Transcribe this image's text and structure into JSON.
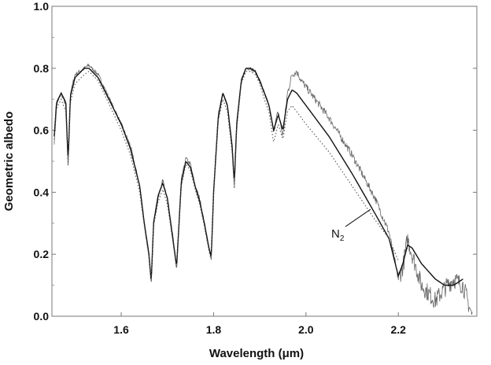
{
  "chart_data": {
    "type": "line",
    "title": "",
    "xlabel": "Wavelength (μm)",
    "ylabel": "Geometric albedo",
    "xlim": [
      1.45,
      2.37
    ],
    "ylim": [
      0.0,
      1.0
    ],
    "xticks": [
      1.6,
      1.8,
      2.0,
      2.2
    ],
    "xtick_labels": [
      "1.6",
      "1.8",
      "2.0",
      "2.2"
    ],
    "yticks": [
      0.0,
      0.2,
      0.4,
      0.6,
      0.8,
      1.0
    ],
    "ytick_labels": [
      "0.0",
      "0.2",
      "0.4",
      "0.6",
      "0.8",
      "1.0"
    ],
    "grid": false,
    "legend": "none",
    "annotation": {
      "text": "N",
      "subscript": "2",
      "points_to_x": 2.14,
      "points_to_y": 0.345
    },
    "series": [
      {
        "style": "noisy-thin",
        "color": "#666666",
        "x": [
          1.455,
          1.46,
          1.47,
          1.48,
          1.485,
          1.49,
          1.5,
          1.52,
          1.53,
          1.55,
          1.6,
          1.62,
          1.64,
          1.65,
          1.66,
          1.665,
          1.67,
          1.68,
          1.69,
          1.7,
          1.71,
          1.72,
          1.73,
          1.74,
          1.75,
          1.76,
          1.77,
          1.78,
          1.79,
          1.795,
          1.8,
          1.81,
          1.82,
          1.83,
          1.84,
          1.845,
          1.85,
          1.86,
          1.87,
          1.88,
          1.89,
          1.9,
          1.91,
          1.92,
          1.93,
          1.94,
          1.95,
          1.96,
          1.97,
          1.98,
          1.99,
          2.0,
          2.05,
          2.1,
          2.15,
          2.18,
          2.2,
          2.21,
          2.22,
          2.23,
          2.25,
          2.28,
          2.3,
          2.32,
          2.34,
          2.36
        ],
        "y": [
          0.56,
          0.68,
          0.72,
          0.68,
          0.48,
          0.72,
          0.78,
          0.8,
          0.81,
          0.78,
          0.62,
          0.55,
          0.42,
          0.3,
          0.2,
          0.1,
          0.3,
          0.38,
          0.44,
          0.38,
          0.28,
          0.15,
          0.44,
          0.51,
          0.49,
          0.42,
          0.38,
          0.3,
          0.22,
          0.18,
          0.4,
          0.65,
          0.72,
          0.68,
          0.55,
          0.42,
          0.62,
          0.76,
          0.8,
          0.8,
          0.79,
          0.76,
          0.72,
          0.68,
          0.6,
          0.66,
          0.58,
          0.72,
          0.78,
          0.79,
          0.76,
          0.74,
          0.64,
          0.52,
          0.38,
          0.27,
          0.12,
          0.16,
          0.25,
          0.2,
          0.1,
          0.05,
          0.09,
          0.12,
          0.1,
          0.0
        ]
      },
      {
        "style": "smooth-model",
        "color": "#111111",
        "x": [
          1.455,
          1.46,
          1.47,
          1.48,
          1.485,
          1.49,
          1.5,
          1.52,
          1.53,
          1.55,
          1.6,
          1.62,
          1.64,
          1.65,
          1.66,
          1.665,
          1.67,
          1.68,
          1.69,
          1.7,
          1.71,
          1.72,
          1.73,
          1.74,
          1.75,
          1.76,
          1.77,
          1.78,
          1.79,
          1.795,
          1.8,
          1.81,
          1.82,
          1.83,
          1.84,
          1.845,
          1.85,
          1.86,
          1.87,
          1.88,
          1.89,
          1.9,
          1.91,
          1.92,
          1.93,
          1.94,
          1.95,
          1.96,
          1.97,
          1.98,
          2.0,
          2.05,
          2.1,
          2.15,
          2.18,
          2.2,
          2.21,
          2.22,
          2.23,
          2.25,
          2.28,
          2.3,
          2.32,
          2.34
        ],
        "y": [
          0.58,
          0.69,
          0.72,
          0.69,
          0.5,
          0.71,
          0.77,
          0.8,
          0.8,
          0.77,
          0.62,
          0.54,
          0.42,
          0.3,
          0.2,
          0.11,
          0.3,
          0.39,
          0.43,
          0.38,
          0.27,
          0.16,
          0.43,
          0.5,
          0.48,
          0.42,
          0.37,
          0.3,
          0.22,
          0.19,
          0.4,
          0.64,
          0.72,
          0.68,
          0.55,
          0.43,
          0.62,
          0.76,
          0.8,
          0.8,
          0.79,
          0.76,
          0.72,
          0.68,
          0.6,
          0.65,
          0.6,
          0.7,
          0.73,
          0.72,
          0.68,
          0.58,
          0.46,
          0.33,
          0.25,
          0.13,
          0.17,
          0.23,
          0.22,
          0.17,
          0.12,
          0.1,
          0.1,
          0.12
        ]
      },
      {
        "style": "dotted-model",
        "color": "#555555",
        "x": [
          1.455,
          1.46,
          1.47,
          1.48,
          1.485,
          1.49,
          1.5,
          1.52,
          1.53,
          1.55,
          1.6,
          1.62,
          1.64,
          1.65,
          1.66,
          1.665,
          1.67,
          1.68,
          1.69,
          1.7,
          1.71,
          1.72,
          1.73,
          1.74,
          1.75,
          1.76,
          1.77,
          1.78,
          1.79,
          1.795,
          1.8,
          1.81,
          1.82,
          1.83,
          1.84,
          1.845,
          1.85,
          1.86,
          1.87,
          1.88,
          1.89,
          1.9,
          1.91,
          1.92,
          1.93,
          1.94,
          1.95,
          1.96,
          1.97,
          1.98,
          2.0,
          2.05,
          2.1,
          2.15,
          2.18,
          2.2
        ],
        "y": [
          0.57,
          0.67,
          0.7,
          0.66,
          0.48,
          0.69,
          0.75,
          0.78,
          0.79,
          0.76,
          0.6,
          0.52,
          0.4,
          0.29,
          0.19,
          0.11,
          0.29,
          0.37,
          0.41,
          0.36,
          0.26,
          0.15,
          0.42,
          0.49,
          0.47,
          0.41,
          0.36,
          0.29,
          0.21,
          0.18,
          0.39,
          0.63,
          0.7,
          0.66,
          0.53,
          0.41,
          0.6,
          0.75,
          0.79,
          0.79,
          0.78,
          0.75,
          0.7,
          0.66,
          0.56,
          0.62,
          0.57,
          0.66,
          0.68,
          0.66,
          0.62,
          0.53,
          0.42,
          0.31,
          0.25,
          0.18
        ]
      }
    ]
  }
}
